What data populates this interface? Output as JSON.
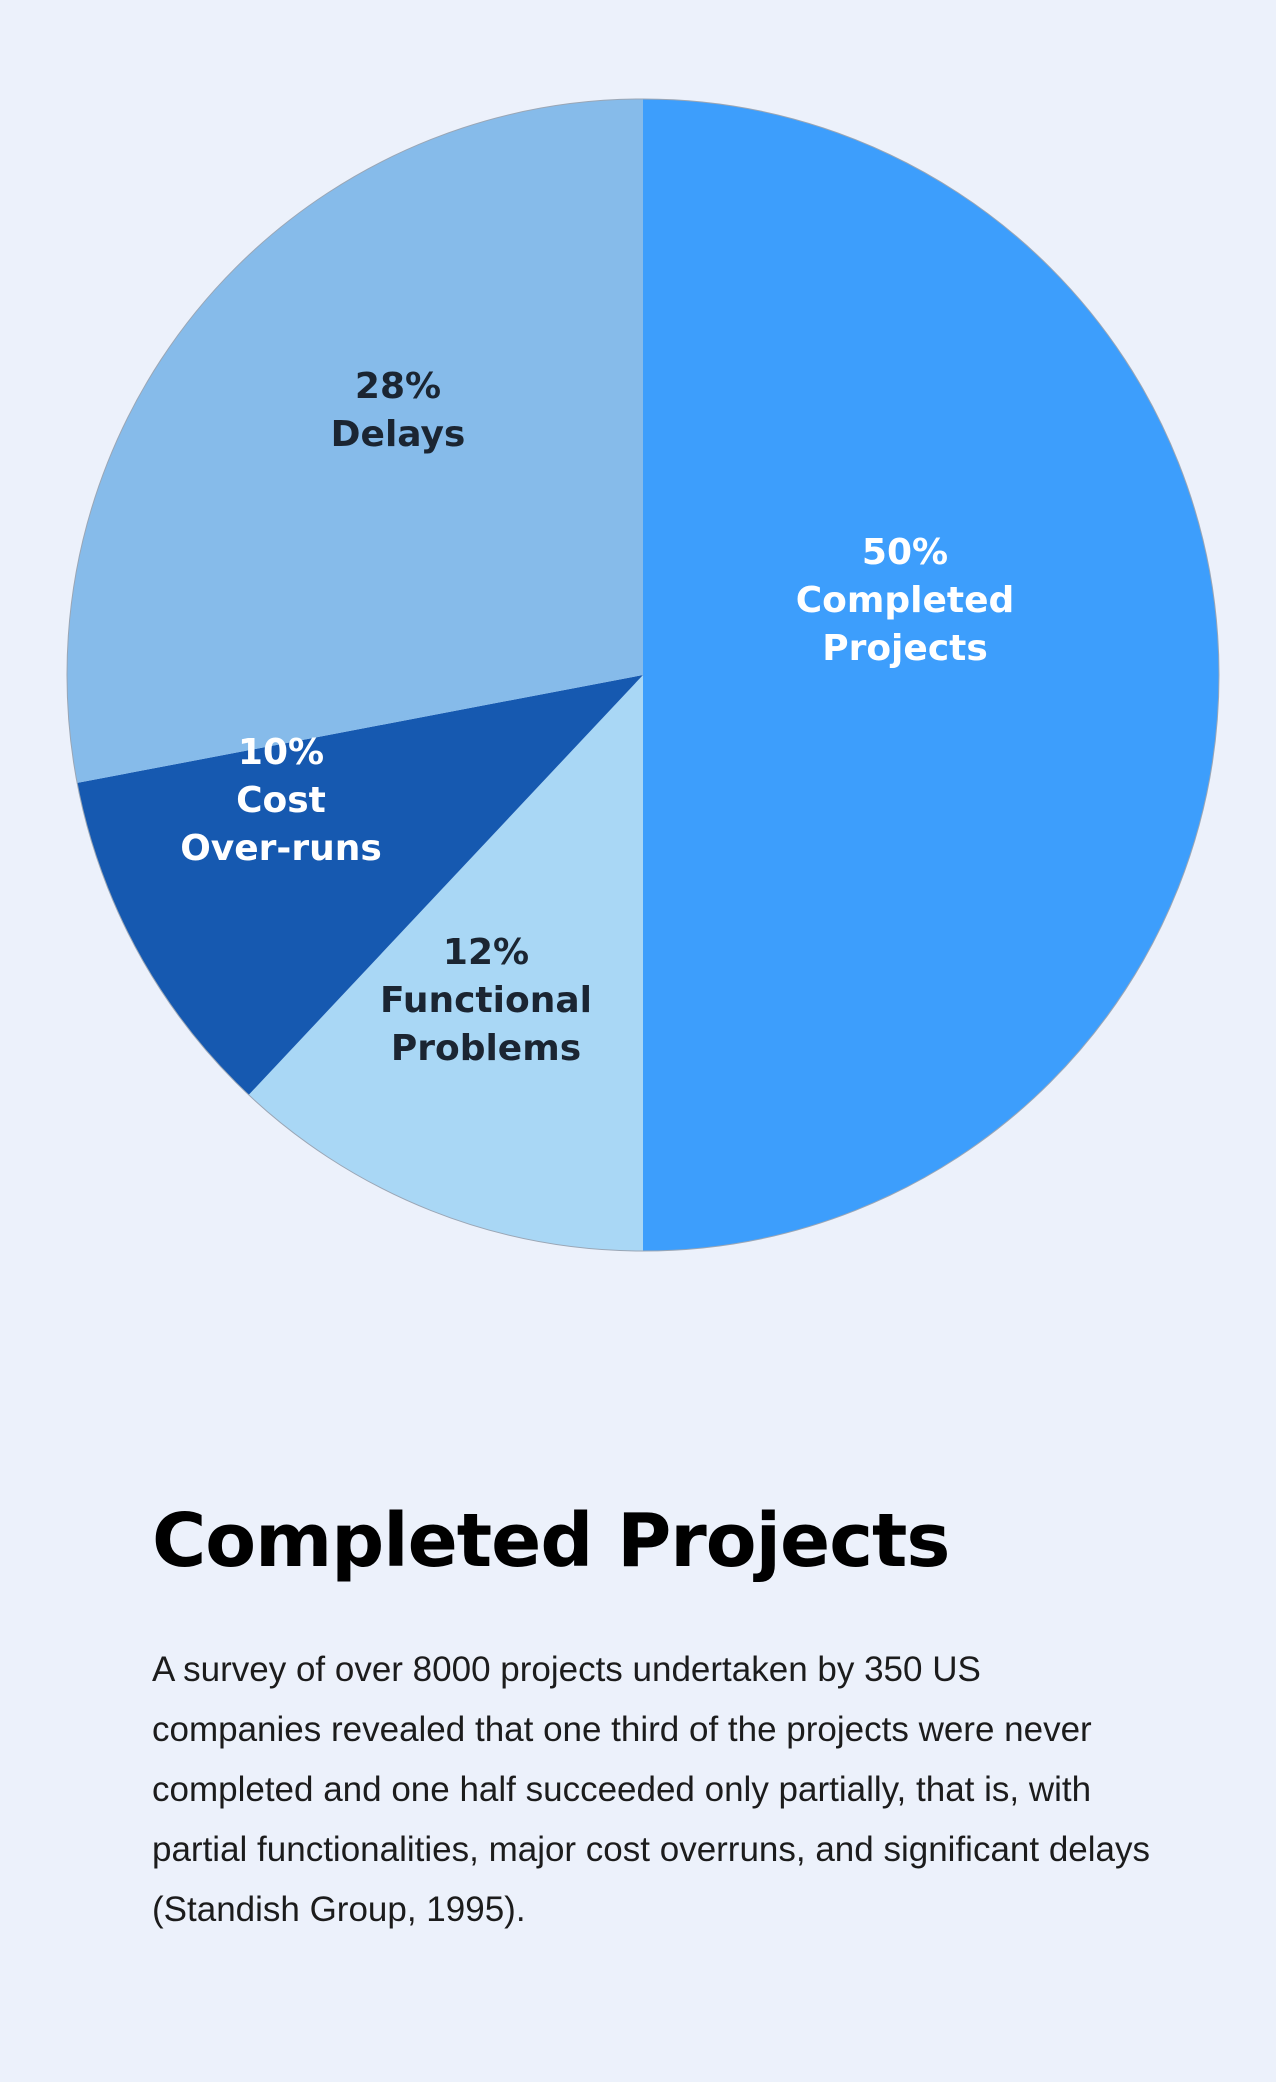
{
  "chart_data": {
    "type": "pie",
    "slices": [
      {
        "label": "Completed Projects",
        "value": 50,
        "value_label": "50%",
        "label_lines": [
          "Completed",
          "Projects"
        ],
        "color": "#3d9efc",
        "text_color": "#ffffff"
      },
      {
        "label": "Functional Problems",
        "value": 12,
        "value_label": "12%",
        "label_lines": [
          "Functional",
          "Problems"
        ],
        "color": "#a9d7f5",
        "text_color": "#1b2532"
      },
      {
        "label": "Cost Over-runs",
        "value": 10,
        "value_label": "10%",
        "label_lines": [
          "Cost",
          "Over-runs"
        ],
        "color": "#1659b0",
        "text_color": "#ffffff"
      },
      {
        "label": "Delays",
        "value": 28,
        "value_label": "28%",
        "label_lines": [
          "Delays"
        ],
        "color": "#86bbea",
        "text_color": "#1b2532"
      }
    ],
    "start": "top",
    "direction": "clockwise"
  },
  "text": {
    "title": "Completed Projects",
    "body": "A survey of over 8000 projects undertaken by 350 US companies revealed that one third of the projects were never completed and one half succeeded only partially, that is, with partial functionalities, major cost overruns, and significant delays (Standish Group, 1995)."
  },
  "colors": {
    "background": "#ecf1fb",
    "title": "#000000",
    "body": "#1c1c1c"
  }
}
